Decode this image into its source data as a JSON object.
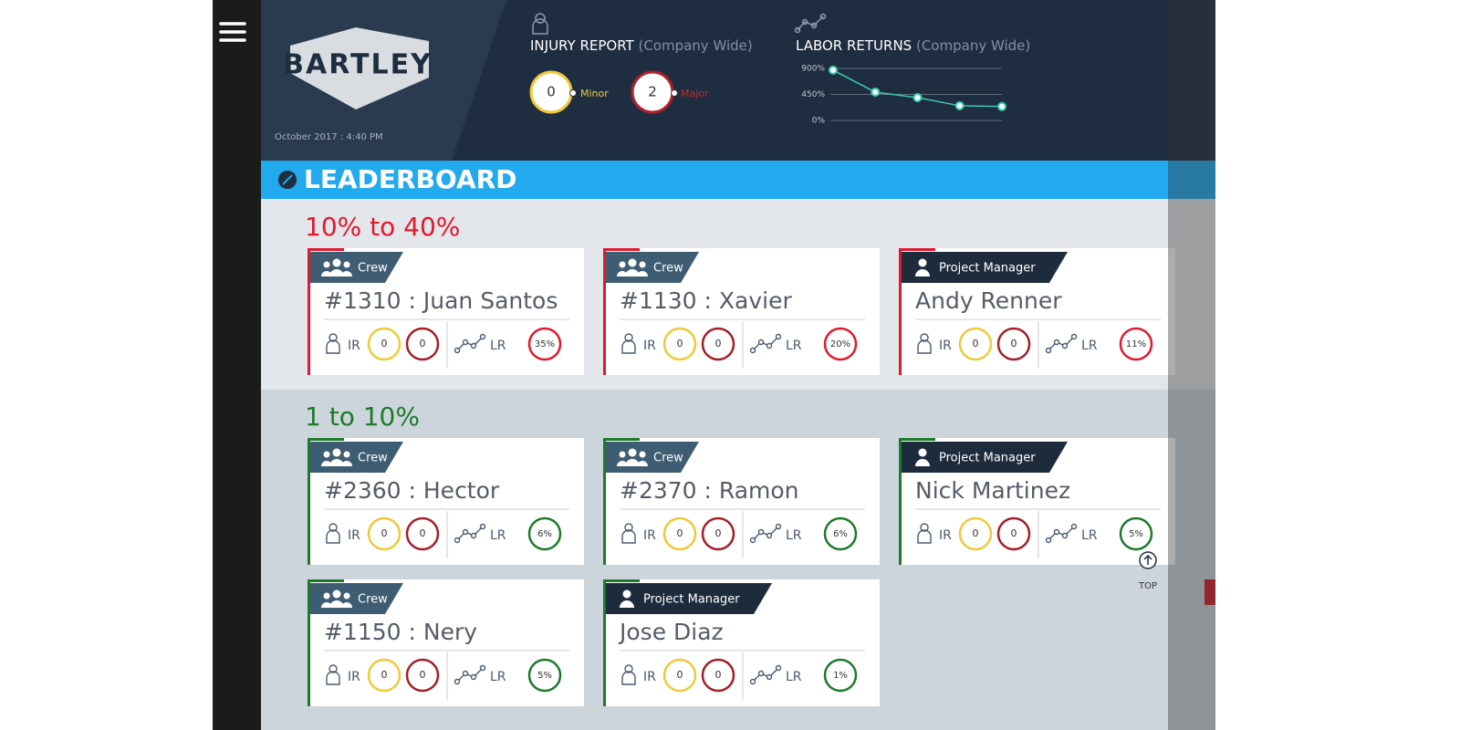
{
  "header": {
    "logo": "BARTLEY",
    "date": "October 2017 : 4:40 PM"
  },
  "injury_report": {
    "title": "INJURY REPORT",
    "subtitle": "(Company Wide)",
    "minor": {
      "value": 0,
      "label": "Minor"
    },
    "major": {
      "value": 2,
      "label": "Major"
    }
  },
  "labor_returns": {
    "title": "LABOR RETURNS",
    "subtitle": "(Company Wide)",
    "chart": {
      "type": "line",
      "values": [
        870,
        490,
        395,
        255,
        240
      ],
      "color": "#3cc8b0",
      "ylim": [
        0,
        900
      ],
      "yticks": [
        {
          "value": 900,
          "label": "900%"
        },
        {
          "value": 450,
          "label": "450%"
        },
        {
          "value": 0,
          "label": "0%"
        }
      ]
    }
  },
  "leaderboard": {
    "title": "LEADERBOARD",
    "ir_label": "IR",
    "lr_label": "LR",
    "top_label": "TOP",
    "groups": [
      {
        "title": "10% to 40%",
        "color": "#e0192f",
        "cards": [
          {
            "role": "Crew",
            "name": "#1310 : Juan Santos",
            "minor": 0,
            "major": 0,
            "lr": "35%"
          },
          {
            "role": "Crew",
            "name": "#1130 : Xavier",
            "minor": 0,
            "major": 0,
            "lr": "20%"
          },
          {
            "role": "Project Manager",
            "name": "Andy Renner",
            "minor": 0,
            "major": 0,
            "lr": "11%"
          }
        ]
      },
      {
        "title": "1 to 10%",
        "color": "#1e7a2a",
        "cards": [
          {
            "role": "Crew",
            "name": "#2360 : Hector",
            "minor": 0,
            "major": 0,
            "lr": "6%"
          },
          {
            "role": "Crew",
            "name": "#2370 : Ramon",
            "minor": 0,
            "major": 0,
            "lr": "6%"
          },
          {
            "role": "Project Manager",
            "name": "Nick Martinez",
            "minor": 0,
            "major": 0,
            "lr": "5%"
          },
          {
            "role": "Crew",
            "name": "#1150 : Nery",
            "minor": 0,
            "major": 0,
            "lr": "5%"
          },
          {
            "role": "Project Manager",
            "name": "Jose Diaz",
            "minor": 0,
            "major": 0,
            "lr": "1%"
          }
        ]
      }
    ]
  }
}
